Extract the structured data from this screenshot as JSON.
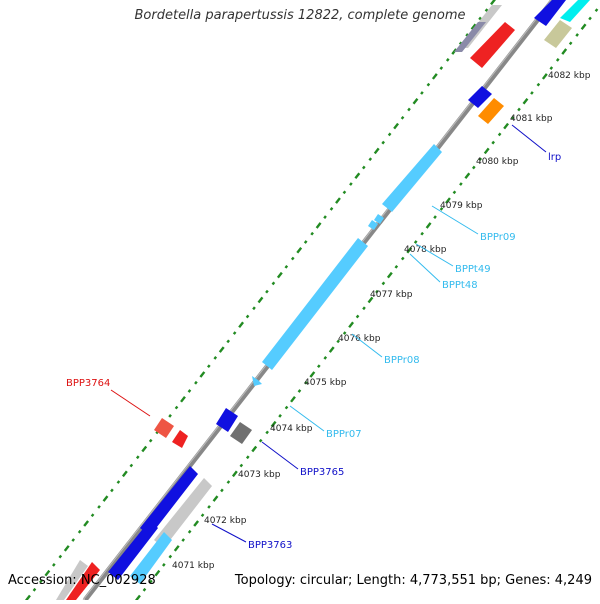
{
  "title": "Bordetella parapertussis 12822, complete genome",
  "accession": "Accession: NC_002928",
  "topology": "Topology: circular; Length: 4,773,551 bp; Genes: 4,249",
  "colors": {
    "backbone": "#888888",
    "tick": "#228B22",
    "cds": "#1010e0",
    "rna": "#55ccff",
    "pseudo": "#ee2222",
    "gray_feature": "#c8c8c8",
    "dark_gray_feature": "#707070",
    "orange_feature": "#ff8c00",
    "olive_feature": "#c8c89a",
    "cyan_feature": "#00eeee"
  },
  "kbp_labels": [
    "4071 kbp",
    "4072 kbp",
    "4073 kbp",
    "4074 kbp",
    "4075 kbp",
    "4076 kbp",
    "4077 kbp",
    "4078 kbp",
    "4079 kbp",
    "4080 kbp",
    "4081 kbp",
    "4082 kbp"
  ],
  "feature_labels": [
    {
      "text": "lrp",
      "color": "#1010c8"
    },
    {
      "text": "BPPr09",
      "color": "#33bbee"
    },
    {
      "text": "BPPt49",
      "color": "#33bbee"
    },
    {
      "text": "BPPt48",
      "color": "#33bbee"
    },
    {
      "text": "BPPr08",
      "color": "#33bbee"
    },
    {
      "text": "BPPr07",
      "color": "#33bbee"
    },
    {
      "text": "BPP3765",
      "color": "#1010c8"
    },
    {
      "text": "BPP3764",
      "color": "#dd1111"
    },
    {
      "text": "BPP3763",
      "color": "#1010c8"
    }
  ]
}
